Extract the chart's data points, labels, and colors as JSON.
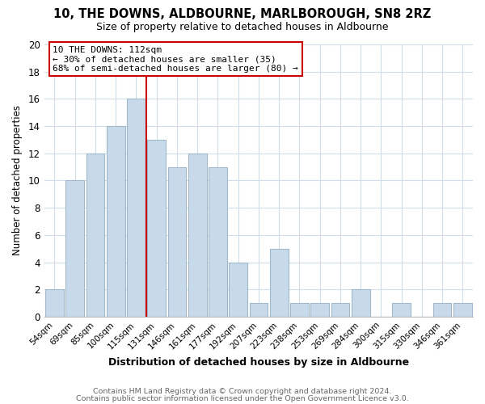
{
  "title": "10, THE DOWNS, ALDBOURNE, MARLBOROUGH, SN8 2RZ",
  "subtitle": "Size of property relative to detached houses in Aldbourne",
  "xlabel": "Distribution of detached houses by size in Aldbourne",
  "ylabel": "Number of detached properties",
  "bar_color": "#c8daea",
  "bar_edge_color": "#a0b8cc",
  "categories": [
    "54sqm",
    "69sqm",
    "85sqm",
    "100sqm",
    "115sqm",
    "131sqm",
    "146sqm",
    "161sqm",
    "177sqm",
    "192sqm",
    "207sqm",
    "223sqm",
    "238sqm",
    "253sqm",
    "269sqm",
    "284sqm",
    "300sqm",
    "315sqm",
    "330sqm",
    "346sqm",
    "361sqm"
  ],
  "values": [
    2,
    10,
    12,
    14,
    16,
    13,
    11,
    12,
    11,
    4,
    1,
    5,
    1,
    1,
    1,
    2,
    0,
    1,
    0,
    1,
    1
  ],
  "highlight_index": 4,
  "highlight_line_color": "#cc0000",
  "annotation_line1": "10 THE DOWNS: 112sqm",
  "annotation_line2": "← 30% of detached houses are smaller (35)",
  "annotation_line3": "68% of semi-detached houses are larger (80) →",
  "annotation_box_color": "#ffffff",
  "annotation_box_edge_color": "#cc0000",
  "ylim": [
    0,
    20
  ],
  "yticks": [
    0,
    2,
    4,
    6,
    8,
    10,
    12,
    14,
    16,
    18,
    20
  ],
  "footer1": "Contains HM Land Registry data © Crown copyright and database right 2024.",
  "footer2": "Contains public sector information licensed under the Open Government Licence v3.0.",
  "grid_color": "#d0dce8",
  "background_color": "#ffffff",
  "ax_background_color": "#ffffff"
}
